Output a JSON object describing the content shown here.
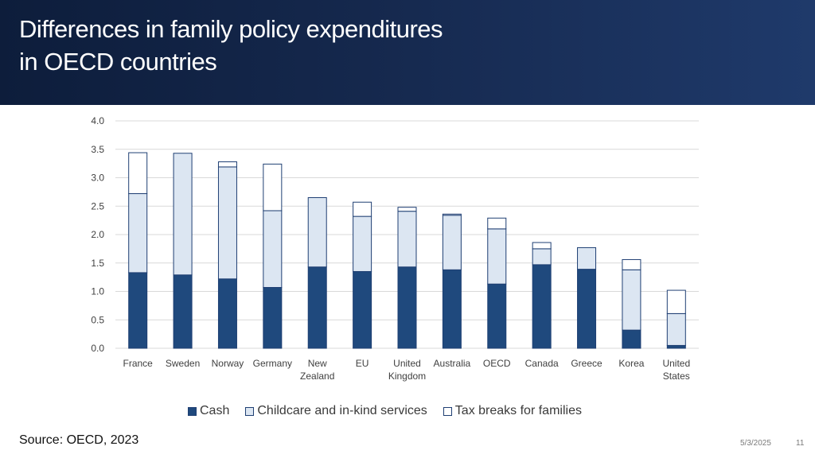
{
  "slide": {
    "title_line1": "Differences in family policy expenditures",
    "title_line2": "in OECD countries",
    "source": "Source: OECD, 2023",
    "date": "5/3/2025",
    "page_number": "11"
  },
  "colors": {
    "cash": "#1f497d",
    "childcare": "#dce6f2",
    "tax": "#ffffff",
    "outline": "#1f3f73",
    "grid": "#d9d9d9",
    "tick_text": "#404040"
  },
  "chart_data": {
    "type": "bar",
    "stacked": true,
    "title": "",
    "xlabel": "",
    "ylabel": "",
    "ylim": [
      0,
      4.0
    ],
    "yticks": [
      "0.0",
      "0.5",
      "1.0",
      "1.5",
      "2.0",
      "2.5",
      "3.0",
      "3.5",
      "4.0"
    ],
    "grid": true,
    "legend_position": "bottom",
    "categories": [
      [
        "France"
      ],
      [
        "Sweden"
      ],
      [
        "Norway"
      ],
      [
        "Germany"
      ],
      [
        "New",
        "Zealand"
      ],
      [
        "EU"
      ],
      [
        "United",
        "Kingdom"
      ],
      [
        "Australia"
      ],
      [
        "OECD"
      ],
      [
        "Canada"
      ],
      [
        "Greece"
      ],
      [
        "Korea"
      ],
      [
        "United",
        "States"
      ]
    ],
    "series": [
      {
        "name": "Cash",
        "key": "cash",
        "values": [
          1.33,
          1.29,
          1.22,
          1.07,
          1.43,
          1.35,
          1.43,
          1.38,
          1.13,
          1.47,
          1.39,
          0.32,
          0.05
        ]
      },
      {
        "name": "Childcare and in-kind services",
        "key": "childcare",
        "values": [
          1.39,
          2.14,
          1.97,
          1.35,
          1.22,
          0.97,
          0.98,
          0.96,
          0.97,
          0.28,
          0.38,
          1.06,
          0.56
        ]
      },
      {
        "name": "Tax breaks for families",
        "key": "tax",
        "values": [
          0.72,
          0.0,
          0.09,
          0.82,
          0.0,
          0.25,
          0.07,
          0.02,
          0.19,
          0.11,
          0.0,
          0.18,
          0.41
        ]
      }
    ]
  }
}
